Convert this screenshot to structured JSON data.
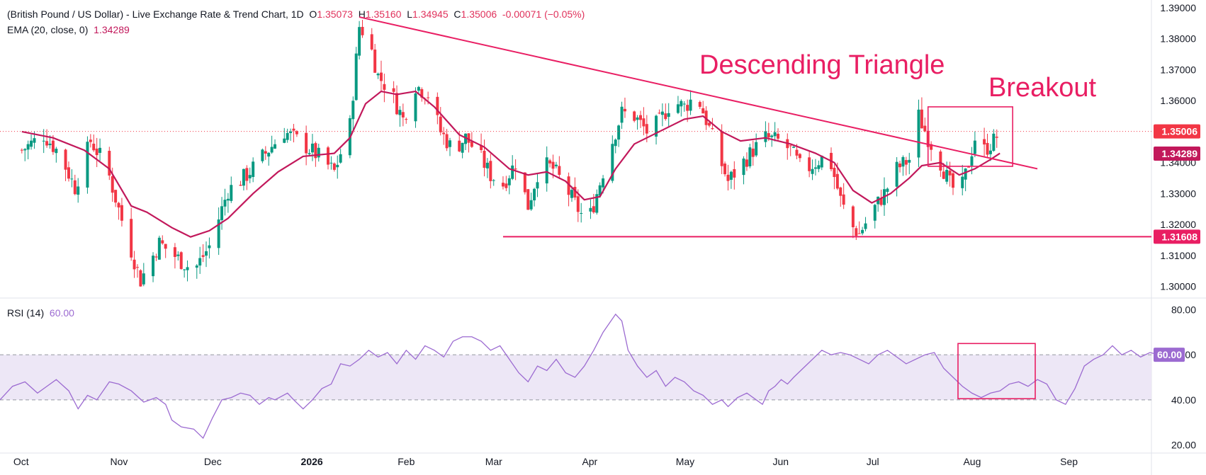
{
  "header": {
    "symbol_text": "(British Pound / US Dollar) - Live Exchange Rate & Trend Chart, 1D",
    "o_label": "O",
    "o_value": "1.35073",
    "h_label": "H",
    "h_value": "1.35160",
    "l_label": "L",
    "l_value": "1.34945",
    "c_label": "C",
    "c_value": "1.35006",
    "change": "-0.00071 (−0.05%)",
    "ema_label": "EMA (20, close, 0)",
    "ema_value": "1.34289",
    "rsi_label": "RSI (14)",
    "rsi_value": "60.00"
  },
  "annotations": {
    "pattern": "Descending Triangle",
    "breakout": "Breakout"
  },
  "colors": {
    "up": "#089981",
    "down": "#f23645",
    "ema": "#c2185b",
    "annot": "#e91e63",
    "rsi": "#9c6bd1",
    "rsi_band": "#ede7f6",
    "last_price": "#f23645"
  },
  "chart_data": [
    {
      "type": "candlestick",
      "title": "(British Pound / US Dollar) - Live Exchange Rate & Trend Chart",
      "timeframe": "1D",
      "x_ticks": [
        "Oct",
        "Nov",
        "Dec",
        "2026",
        "Feb",
        "Mar",
        "Apr",
        "May",
        "Jun",
        "Jul",
        "Aug",
        "Sep"
      ],
      "x_tick_days": [
        0,
        31,
        61,
        92,
        123,
        151,
        182,
        212,
        243,
        273,
        304,
        335
      ],
      "y_ticks": [
        "1.39000",
        "1.38000",
        "1.37000",
        "1.36000",
        "1.35000",
        "1.34000",
        "1.33000",
        "1.32000",
        "1.31000",
        "1.30000"
      ],
      "ylim": [
        1.2965,
        1.3925
      ],
      "last_close": "1.35006",
      "ema_last": "1.34289",
      "support_level": "1.31608",
      "series": [
        {
          "name": "GBP/USD",
          "close_points": [
            [
              0,
              1.344
            ],
            [
              7,
              1.349
            ],
            [
              12,
              1.343
            ],
            [
              17,
              1.332
            ],
            [
              22,
              1.347
            ],
            [
              27,
              1.339
            ],
            [
              33,
              1.318
            ],
            [
              38,
              1.302
            ],
            [
              44,
              1.314
            ],
            [
              50,
              1.309
            ],
            [
              55,
              1.305
            ],
            [
              60,
              1.313
            ],
            [
              66,
              1.331
            ],
            [
              72,
              1.336
            ],
            [
              78,
              1.343
            ],
            [
              84,
              1.35
            ],
            [
              90,
              1.346
            ],
            [
              95,
              1.342
            ],
            [
              100,
              1.337
            ],
            [
              105,
              1.352
            ],
            [
              108,
              1.384
            ],
            [
              111,
              1.38
            ],
            [
              114,
              1.368
            ],
            [
              118,
              1.363
            ],
            [
              122,
              1.354
            ],
            [
              126,
              1.365
            ],
            [
              130,
              1.362
            ],
            [
              134,
              1.35
            ],
            [
              138,
              1.344
            ],
            [
              142,
              1.348
            ],
            [
              146,
              1.343
            ],
            [
              150,
              1.336
            ],
            [
              154,
              1.333
            ],
            [
              158,
              1.34
            ],
            [
              162,
              1.326
            ],
            [
              166,
              1.34
            ],
            [
              170,
              1.338
            ],
            [
              174,
              1.332
            ],
            [
              178,
              1.325
            ],
            [
              181,
              1.32
            ],
            [
              184,
              1.33
            ],
            [
              188,
              1.344
            ],
            [
              192,
              1.356
            ],
            [
              196,
              1.355
            ],
            [
              200,
              1.35
            ],
            [
              204,
              1.353
            ],
            [
              208,
              1.36
            ],
            [
              212,
              1.358
            ],
            [
              216,
              1.362
            ],
            [
              220,
              1.351
            ],
            [
              223,
              1.342
            ],
            [
              226,
              1.334
            ],
            [
              230,
              1.339
            ],
            [
              234,
              1.344
            ],
            [
              238,
              1.348
            ],
            [
              242,
              1.347
            ],
            [
              246,
              1.344
            ],
            [
              250,
              1.337
            ],
            [
              254,
              1.34
            ],
            [
              258,
              1.343
            ],
            [
              262,
              1.328
            ],
            [
              265,
              1.32
            ],
            [
              268,
              1.317
            ],
            [
              272,
              1.324
            ],
            [
              276,
              1.33
            ],
            [
              280,
              1.338
            ],
            [
              284,
              1.341
            ],
            [
              287,
              1.355
            ],
            [
              290,
              1.348
            ],
            [
              294,
              1.34
            ],
            [
              297,
              1.333
            ],
            [
              300,
              1.329
            ],
            [
              302,
              1.336
            ],
            [
              305,
              1.348
            ],
            [
              308,
              1.344
            ],
            [
              311,
              1.347
            ],
            [
              313,
              1.35
            ]
          ]
        },
        {
          "name": "EMA (20, close, 0)",
          "points": [
            [
              0,
              1.35
            ],
            [
              10,
              1.348
            ],
            [
              20,
              1.344
            ],
            [
              28,
              1.338
            ],
            [
              35,
              1.326
            ],
            [
              40,
              1.324
            ],
            [
              48,
              1.319
            ],
            [
              54,
              1.316
            ],
            [
              60,
              1.318
            ],
            [
              66,
              1.322
            ],
            [
              74,
              1.33
            ],
            [
              82,
              1.337
            ],
            [
              90,
              1.342
            ],
            [
              100,
              1.343
            ],
            [
              105,
              1.348
            ],
            [
              110,
              1.359
            ],
            [
              115,
              1.363
            ],
            [
              120,
              1.362
            ],
            [
              126,
              1.363
            ],
            [
              132,
              1.358
            ],
            [
              140,
              1.349
            ],
            [
              148,
              1.345
            ],
            [
              156,
              1.338
            ],
            [
              162,
              1.336
            ],
            [
              168,
              1.337
            ],
            [
              174,
              1.334
            ],
            [
              180,
              1.328
            ],
            [
              185,
              1.329
            ],
            [
              190,
              1.338
            ],
            [
              196,
              1.346
            ],
            [
              204,
              1.35
            ],
            [
              212,
              1.354
            ],
            [
              218,
              1.355
            ],
            [
              224,
              1.35
            ],
            [
              230,
              1.347
            ],
            [
              238,
              1.348
            ],
            [
              246,
              1.346
            ],
            [
              254,
              1.343
            ],
            [
              260,
              1.34
            ],
            [
              266,
              1.331
            ],
            [
              272,
              1.327
            ],
            [
              278,
              1.33
            ],
            [
              284,
              1.335
            ],
            [
              288,
              1.339
            ],
            [
              294,
              1.34
            ],
            [
              300,
              1.336
            ],
            [
              305,
              1.338
            ],
            [
              310,
              1.341
            ],
            [
              313,
              1.343
            ]
          ]
        }
      ],
      "trendline": {
        "name": "Descending Triangle upper",
        "points": [
          [
            108,
            1.387
          ],
          [
            325,
            1.338
          ]
        ]
      },
      "support": {
        "name": "Descending Triangle base",
        "from": 154,
        "to": 345,
        "value": 1.31608
      }
    },
    {
      "type": "line",
      "title": "RSI (14)",
      "y_ticks": [
        "80.00",
        "60.00",
        "40.00",
        "20.00"
      ],
      "ylim": [
        17,
        83
      ],
      "band": [
        40,
        60
      ],
      "last_value": "60.00",
      "series": [
        {
          "name": "RSI (14)",
          "points": [
            [
              0,
              40
            ],
            [
              4,
              46
            ],
            [
              8,
              48
            ],
            [
              12,
              43
            ],
            [
              15,
              46
            ],
            [
              18,
              49
            ],
            [
              22,
              44
            ],
            [
              25,
              36
            ],
            [
              28,
              42
            ],
            [
              31,
              40
            ],
            [
              35,
              48
            ],
            [
              38,
              47
            ],
            [
              42,
              44
            ],
            [
              46,
              39
            ],
            [
              50,
              41
            ],
            [
              53,
              38
            ],
            [
              55,
              31
            ],
            [
              58,
              28
            ],
            [
              62,
              27
            ],
            [
              65,
              23
            ],
            [
              68,
              32
            ],
            [
              71,
              40
            ],
            [
              74,
              41
            ],
            [
              77,
              43
            ],
            [
              80,
              42
            ],
            [
              83,
              38
            ],
            [
              86,
              41
            ],
            [
              88,
              40
            ],
            [
              92,
              43
            ],
            [
              94,
              40
            ],
            [
              97,
              36
            ],
            [
              100,
              40
            ],
            [
              103,
              45
            ],
            [
              106,
              47
            ],
            [
              109,
              56
            ],
            [
              112,
              55
            ],
            [
              115,
              58
            ],
            [
              118,
              62
            ],
            [
              121,
              59
            ],
            [
              124,
              61
            ],
            [
              127,
              56
            ],
            [
              130,
              62
            ],
            [
              133,
              58
            ],
            [
              136,
              64
            ],
            [
              139,
              62
            ],
            [
              142,
              59
            ],
            [
              145,
              66
            ],
            [
              148,
              68
            ],
            [
              151,
              68
            ],
            [
              154,
              66
            ],
            [
              157,
              62
            ],
            [
              160,
              64
            ],
            [
              163,
              58
            ],
            [
              166,
              52
            ],
            [
              169,
              48
            ],
            [
              172,
              55
            ],
            [
              175,
              53
            ],
            [
              178,
              58
            ],
            [
              181,
              52
            ],
            [
              184,
              50
            ],
            [
              187,
              55
            ],
            [
              190,
              62
            ],
            [
              193,
              70
            ],
            [
              195,
              74
            ],
            [
              197,
              78
            ],
            [
              199,
              75
            ],
            [
              201,
              62
            ],
            [
              204,
              55
            ],
            [
              207,
              50
            ],
            [
              210,
              53
            ],
            [
              213,
              46
            ],
            [
              216,
              50
            ],
            [
              219,
              48
            ],
            [
              222,
              44
            ],
            [
              225,
              42
            ],
            [
              228,
              38
            ],
            [
              231,
              40
            ],
            [
              233,
              37
            ],
            [
              236,
              41
            ],
            [
              239,
              43
            ],
            [
              242,
              40
            ],
            [
              244,
              38
            ],
            [
              246,
              44
            ],
            [
              248,
              46
            ],
            [
              250,
              49
            ],
            [
              252,
              47
            ],
            [
              254,
              50
            ],
            [
              257,
              54
            ],
            [
              260,
              58
            ],
            [
              263,
              62
            ],
            [
              266,
              60
            ],
            [
              269,
              61
            ],
            [
              272,
              60
            ],
            [
              275,
              58
            ],
            [
              278,
              56
            ],
            [
              281,
              60
            ],
            [
              284,
              62
            ],
            [
              287,
              59
            ],
            [
              290,
              56
            ],
            [
              293,
              58
            ],
            [
              296,
              60
            ],
            [
              299,
              61
            ],
            [
              302,
              54
            ],
            [
              305,
              50
            ],
            [
              308,
              46
            ],
            [
              311,
              43
            ],
            [
              314,
              41
            ],
            [
              317,
              43
            ],
            [
              320,
              44
            ],
            [
              323,
              47
            ],
            [
              326,
              48
            ],
            [
              329,
              46
            ],
            [
              332,
              49
            ],
            [
              335,
              47
            ],
            [
              338,
              40
            ],
            [
              341,
              38
            ],
            [
              344,
              45
            ],
            [
              347,
              55
            ],
            [
              350,
              58
            ],
            [
              353,
              60
            ],
            [
              356,
              64
            ],
            [
              359,
              60
            ],
            [
              362,
              62
            ],
            [
              365,
              59
            ],
            [
              368,
              61
            ],
            [
              371,
              60
            ]
          ]
        }
      ]
    }
  ]
}
